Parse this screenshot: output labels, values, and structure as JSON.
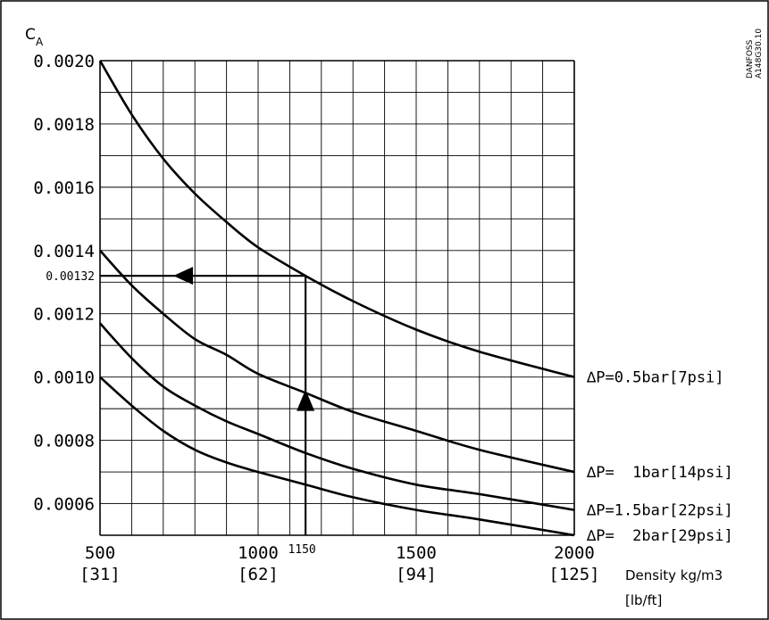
{
  "chart_data": {
    "type": "line",
    "y_axis_title": "C",
    "y_axis_title_sub": "A",
    "corner_text_top": "DANFOSS",
    "corner_text_bottom": "A148G30.10",
    "x_axis_label_line1": "Density kg/m3",
    "x_axis_label_line2": "[lb/ft]",
    "xlim": [
      500,
      2000
    ],
    "ylim": [
      0.0005,
      0.002
    ],
    "x_grid_step": 100,
    "y_grid_step": 0.0001,
    "grid": true,
    "x_ticks": [
      {
        "value": 500,
        "label": "500",
        "sub": "[31]"
      },
      {
        "value": 1000,
        "label": "1000",
        "sub": "[62]"
      },
      {
        "value": 1500,
        "label": "1500",
        "sub": "[94]"
      },
      {
        "value": 2000,
        "label": "2000",
        "sub": "[125]"
      }
    ],
    "y_ticks": [
      {
        "value": 0.002,
        "label": "0.0020"
      },
      {
        "value": 0.0018,
        "label": "0.0018"
      },
      {
        "value": 0.0016,
        "label": "0.0016"
      },
      {
        "value": 0.0014,
        "label": "0.0014"
      },
      {
        "value": 0.0012,
        "label": "0.0012"
      },
      {
        "value": 0.001,
        "label": "0.0010"
      },
      {
        "value": 0.0008,
        "label": "0.0008"
      },
      {
        "value": 0.0006,
        "label": "0.0006"
      }
    ],
    "series": [
      {
        "name": "∆P=0.5bar[7psi]",
        "x": [
          500,
          600,
          700,
          800,
          900,
          1000,
          1150,
          1300,
          1500,
          1700,
          2000
        ],
        "y": [
          0.002,
          0.00183,
          0.00169,
          0.00158,
          0.00149,
          0.00141,
          0.00132,
          0.00124,
          0.00115,
          0.00108,
          0.001
        ]
      },
      {
        "name": "∆P=  1bar[14psi]",
        "x": [
          500,
          600,
          700,
          800,
          900,
          1000,
          1150,
          1300,
          1500,
          1700,
          2000
        ],
        "y": [
          0.0014,
          0.00129,
          0.0012,
          0.00112,
          0.00107,
          0.00101,
          0.00095,
          0.00089,
          0.00083,
          0.00077,
          0.0007
        ]
      },
      {
        "name": "∆P=1.5bar[22psi]",
        "x": [
          500,
          600,
          700,
          800,
          900,
          1000,
          1150,
          1300,
          1500,
          1700,
          2000
        ],
        "y": [
          0.00117,
          0.00106,
          0.00097,
          0.00091,
          0.00086,
          0.00082,
          0.00076,
          0.00071,
          0.00066,
          0.00063,
          0.00058
        ]
      },
      {
        "name": "∆P=  2bar[29psi]",
        "x": [
          500,
          600,
          700,
          800,
          900,
          1000,
          1150,
          1300,
          1500,
          1700,
          2000
        ],
        "y": [
          0.001,
          0.00091,
          0.00083,
          0.00077,
          0.00073,
          0.0007,
          0.00066,
          0.00062,
          0.00058,
          0.00055,
          0.0005
        ]
      }
    ],
    "annotation": {
      "x_value": 1150,
      "x_label": "1150",
      "y_value": 0.00132,
      "y_label": "0.00132"
    }
  }
}
